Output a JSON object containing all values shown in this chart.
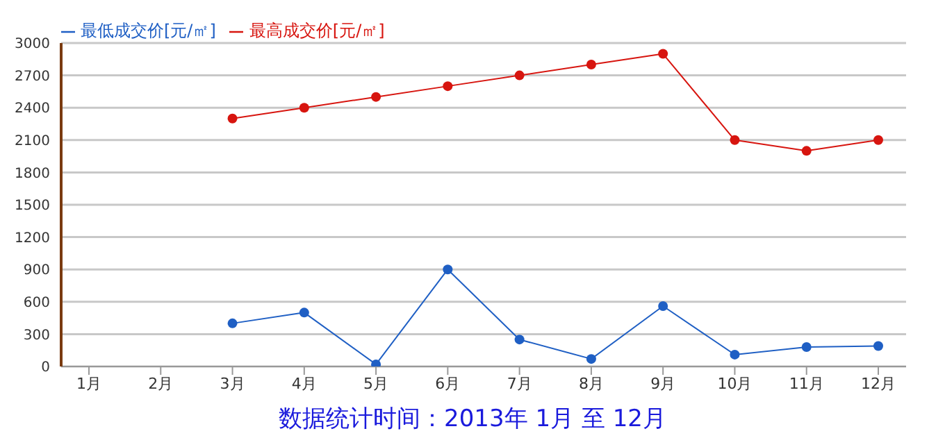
{
  "chart_data": {
    "type": "line",
    "xlabel": "数据统计时间：2013年 1月 至 12月",
    "categories": [
      "1月",
      "2月",
      "3月",
      "4月",
      "5月",
      "6月",
      "7月",
      "8月",
      "9月",
      "10月",
      "11月",
      "12月"
    ],
    "series": [
      {
        "name": "最低成交价[元/㎡]",
        "color": "#1f5fc4",
        "values": [
          null,
          null,
          400,
          500,
          20,
          900,
          250,
          70,
          560,
          110,
          180,
          190
        ]
      },
      {
        "name": "最高成交价[元/㎡]",
        "color": "#d7150f",
        "values": [
          null,
          null,
          2300,
          2400,
          2500,
          2600,
          2700,
          2800,
          2900,
          2100,
          2000,
          2100
        ]
      }
    ],
    "ylim": [
      0,
      3000
    ],
    "yticks": [
      0,
      300,
      600,
      900,
      1200,
      1500,
      1800,
      2100,
      2400,
      2700,
      3000
    ],
    "grid": "y",
    "legend": "top left",
    "marker": "circle"
  }
}
